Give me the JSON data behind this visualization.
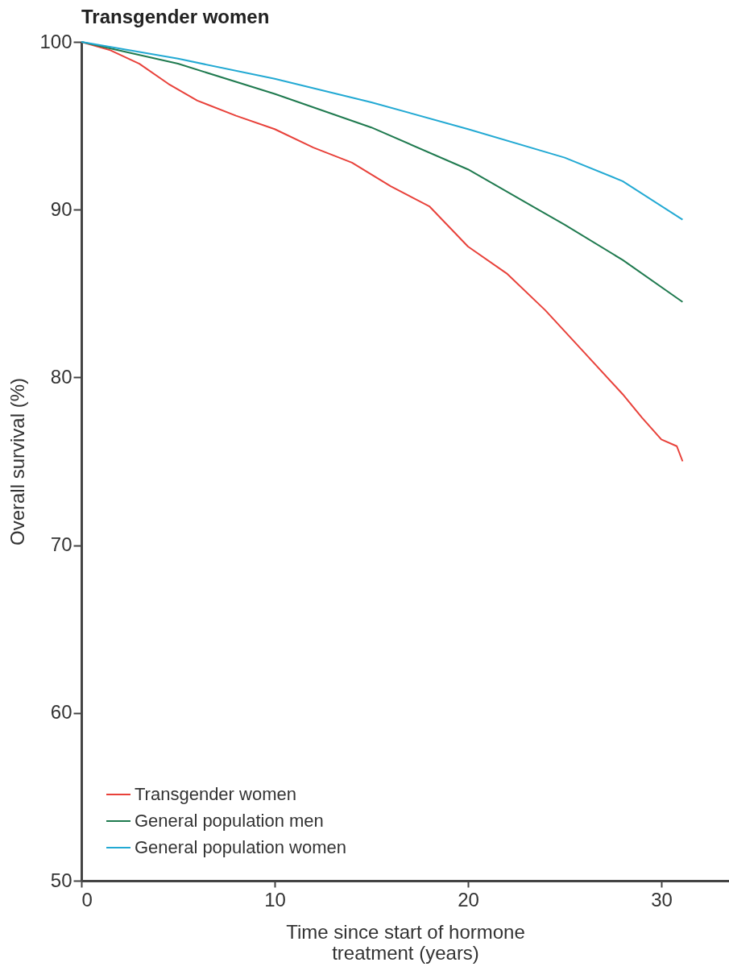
{
  "chart_data": {
    "type": "line",
    "title": "Transgender women",
    "xlabel": "Time since start of hormone treatment (years)",
    "ylabel": "Overall survival (%)",
    "xlim": [
      0,
      33.5
    ],
    "xticks": [
      0,
      10,
      20,
      30
    ],
    "ylim": [
      50,
      100
    ],
    "yticks": [
      50,
      60,
      70,
      80,
      90,
      100
    ],
    "grid": false,
    "legend": "bottom left",
    "marker": "none",
    "line_style": "solid",
    "series": [
      {
        "name": "Transgender women",
        "color": "#e8413a",
        "x": [
          0,
          1.5,
          3,
          4.5,
          6,
          8,
          10,
          12,
          14,
          16,
          18,
          20,
          22,
          24,
          26,
          28,
          29,
          30,
          30.8,
          31.1
        ],
        "values": [
          100,
          99.5,
          98.7,
          97.5,
          96.5,
          95.6,
          94.8,
          93.7,
          92.8,
          91.4,
          90.2,
          87.8,
          86.2,
          84.0,
          81.5,
          79.0,
          77.6,
          76.3,
          75.9,
          75.0
        ]
      },
      {
        "name": "General population men",
        "color": "#1f7a4f",
        "x": [
          0,
          5,
          10,
          15,
          20,
          25,
          28,
          31.1
        ],
        "values": [
          100,
          98.7,
          96.9,
          94.9,
          92.4,
          89.1,
          87.0,
          84.5
        ]
      },
      {
        "name": "General population women",
        "color": "#22a9d3",
        "x": [
          0,
          5,
          10,
          15,
          20,
          25,
          28,
          31.1
        ],
        "values": [
          100,
          99.0,
          97.8,
          96.4,
          94.8,
          93.1,
          91.7,
          89.4
        ]
      }
    ]
  }
}
